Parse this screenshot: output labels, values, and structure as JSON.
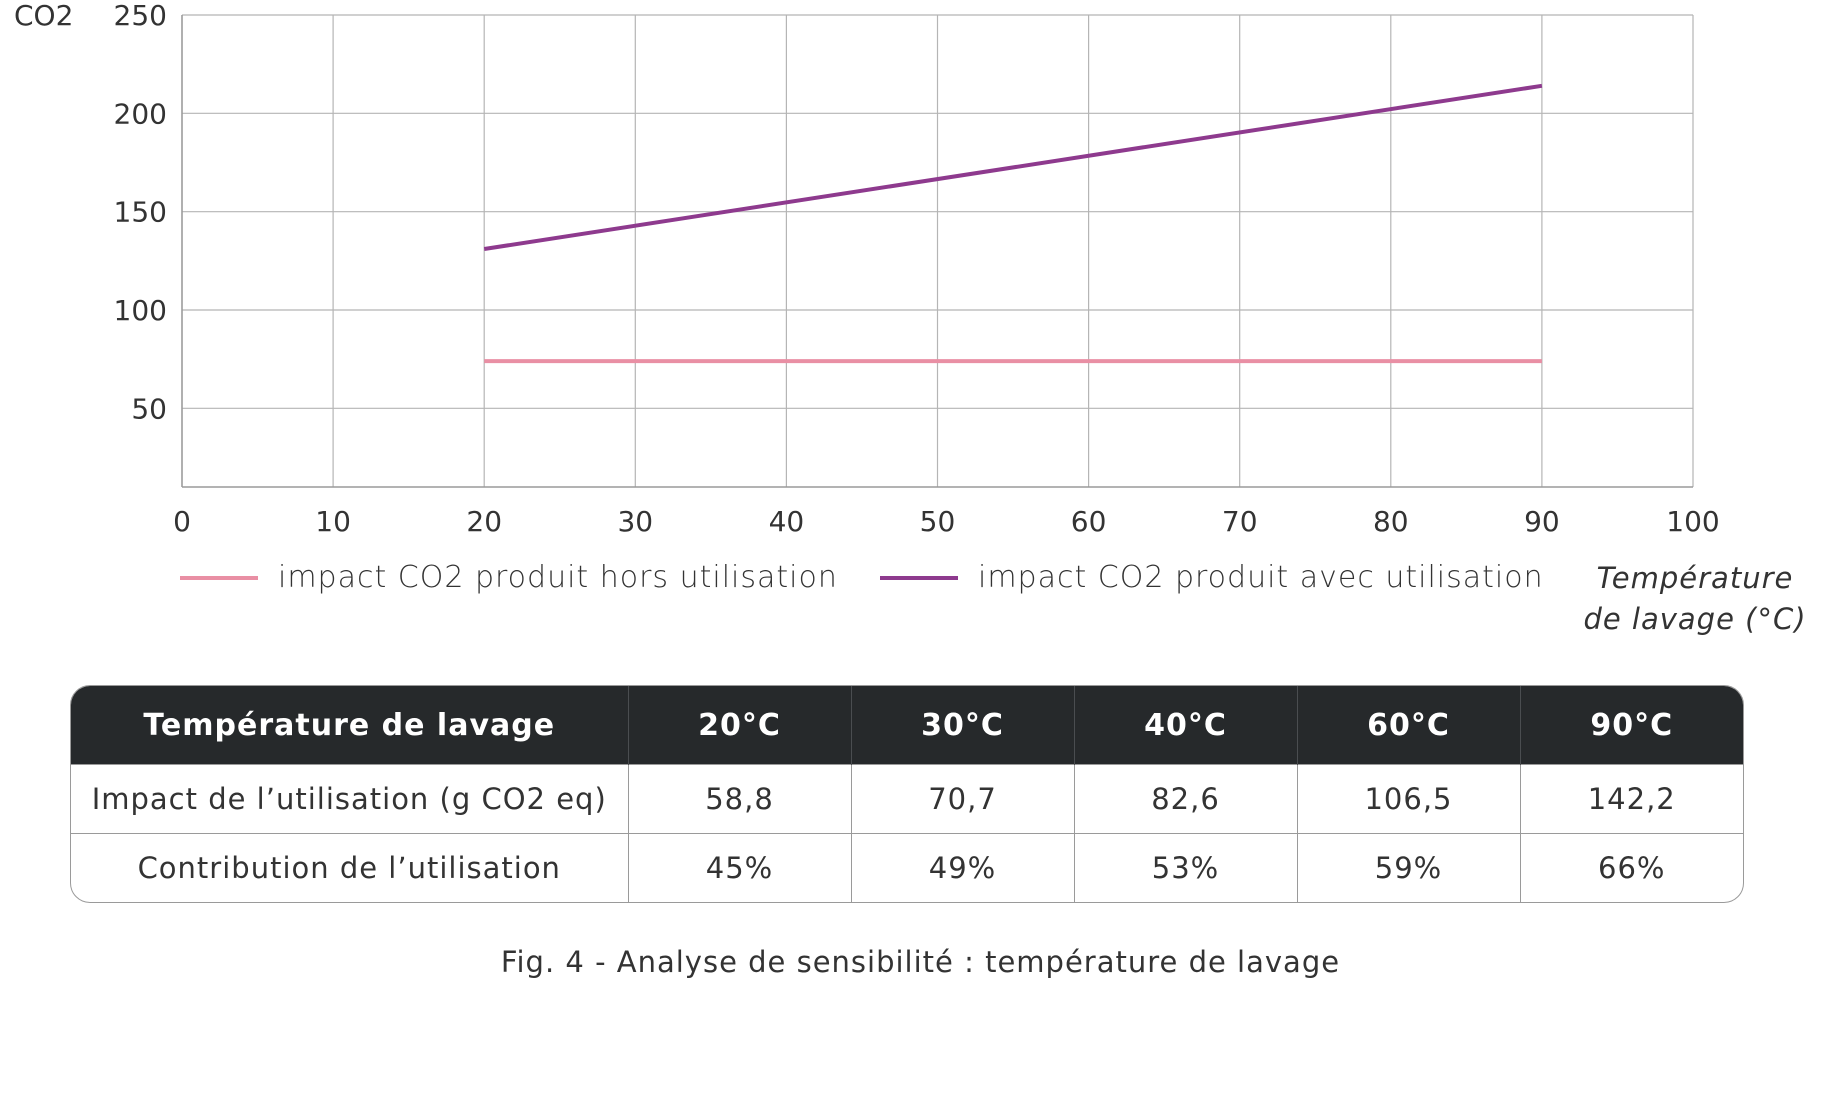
{
  "chart_data": {
    "type": "line",
    "ylabel": "CO2",
    "xlabel": "Température de lavage (°C)",
    "xlabel_lines": [
      "Température",
      "de lavage (°C)"
    ],
    "xlim": [
      0,
      100
    ],
    "ylim": [
      10,
      250
    ],
    "xticks": [
      0,
      10,
      20,
      30,
      40,
      50,
      60,
      70,
      80,
      90,
      100
    ],
    "yticks": [
      50,
      100,
      150,
      200,
      250
    ],
    "grid": true,
    "series": [
      {
        "name": "impact CO2 produit hors utilisation",
        "color": "#e98fa4",
        "x": [
          20,
          90
        ],
        "y": [
          74,
          74
        ]
      },
      {
        "name": "impact CO2 produit avec utilisation",
        "color": "#8e3a8e",
        "x": [
          20,
          90
        ],
        "y": [
          131,
          214
        ]
      }
    ]
  },
  "table": {
    "headers": [
      "Température de lavage",
      "20°C",
      "30°C",
      "40°C",
      "60°C",
      "90°C"
    ],
    "rows": [
      [
        "Impact de l’utilisation (g CO2 eq)",
        "58,8",
        "70,7",
        "82,6",
        "106,5",
        "142,2"
      ],
      [
        "Contribution de l’utilisation",
        "45%",
        "49%",
        "53%",
        "59%",
        "66%"
      ]
    ]
  },
  "caption": "Fig. 4 - Analyse de sensibilité : température de lavage"
}
